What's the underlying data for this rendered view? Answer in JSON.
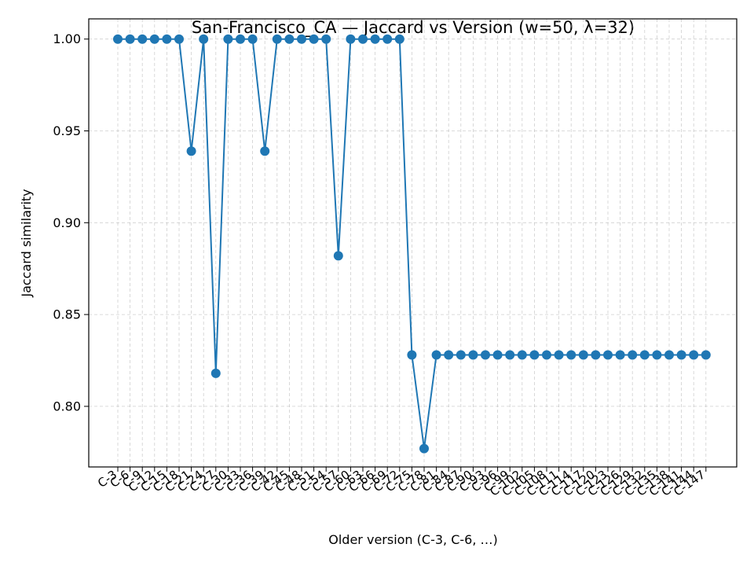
{
  "chart_data": {
    "type": "line",
    "title": "San-Francisco_CA — Jaccard vs Version (w=50, λ=32)",
    "xlabel": "Older version (C-3, C-6, …)",
    "ylabel": "Jaccard similarity",
    "categories": [
      "C-3",
      "C-6",
      "C-9",
      "C-12",
      "C-15",
      "C-18",
      "C-21",
      "C-24",
      "C-27",
      "C-30",
      "C-33",
      "C-36",
      "C-39",
      "C-42",
      "C-45",
      "C-48",
      "C-51",
      "C-54",
      "C-57",
      "C-60",
      "C-63",
      "C-66",
      "C-69",
      "C-72",
      "C-75",
      "C-78",
      "C-81",
      "C-84",
      "C-87",
      "C-90",
      "C-93",
      "C-96",
      "C-99",
      "C-102",
      "C-105",
      "C-108",
      "C-111",
      "C-114",
      "C-117",
      "C-120",
      "C-123",
      "C-126",
      "C-129",
      "C-132",
      "C-135",
      "C-138",
      "C-141",
      "C-144",
      "C-147"
    ],
    "series": [
      {
        "values": [
          1.0,
          1.0,
          1.0,
          1.0,
          1.0,
          1.0,
          0.939,
          1.0,
          0.818,
          1.0,
          1.0,
          1.0,
          0.939,
          1.0,
          1.0,
          1.0,
          1.0,
          1.0,
          0.882,
          1.0,
          1.0,
          1.0,
          1.0,
          1.0,
          0.828,
          0.777,
          0.828,
          0.828,
          0.828,
          0.828,
          0.828,
          0.828,
          0.828,
          0.828,
          0.828,
          0.828,
          0.828,
          0.828,
          0.828,
          0.828,
          0.828,
          0.828,
          0.828,
          0.828,
          0.828,
          0.828,
          0.828,
          0.828,
          0.828
        ],
        "color": "#1f77b4"
      }
    ],
    "yticks": [
      "0.80",
      "0.85",
      "0.90",
      "0.95",
      "1.00"
    ],
    "ylim": [
      0.767,
      1.011
    ],
    "grid": true,
    "marker": "circle"
  }
}
